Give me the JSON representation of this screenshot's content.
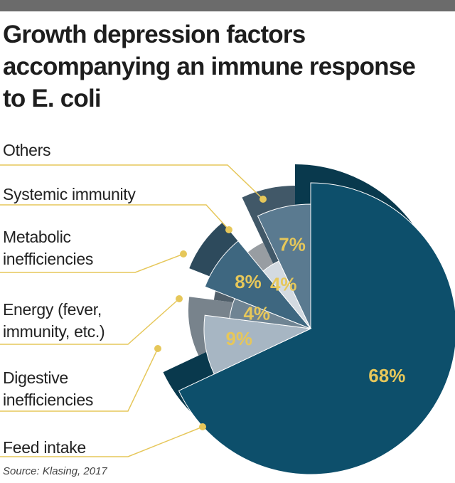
{
  "chart_data": {
    "type": "pie",
    "title": "Growth depression factors accompanying an immune response to E. coli",
    "categories": [
      "Feed intake",
      "Digestive inefficiencies",
      "Energy (fever, immunity, etc.)",
      "Metabolic inefficiencies",
      "Systemic immunity",
      "Others"
    ],
    "values": [
      68,
      9,
      4,
      8,
      4,
      7
    ],
    "value_labels": [
      "68%",
      "9%",
      "4%",
      "8%",
      "4%",
      "7%"
    ],
    "colors": [
      "#0d4f6b",
      "#a7b6c3",
      "#6f8493",
      "#3e6780",
      "#d3dae1",
      "#5a7a90"
    ],
    "source": "Source: Klasing, 2017"
  }
}
